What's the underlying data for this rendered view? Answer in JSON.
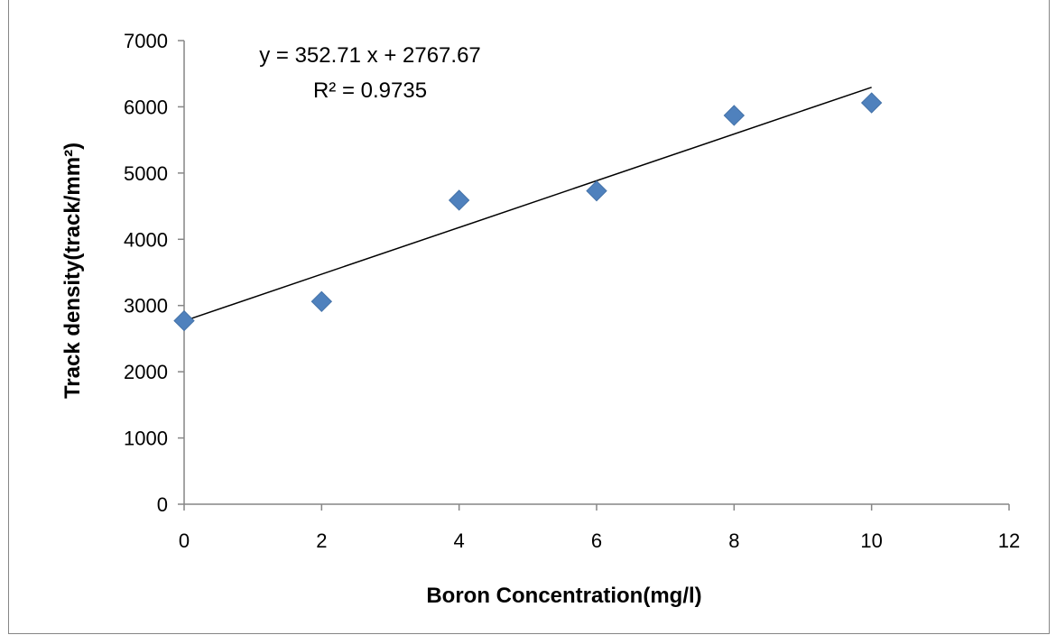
{
  "chart_data": {
    "type": "scatter",
    "xlabel": "Boron Concentration(mg/l)",
    "ylabel": "Track density(track/mm²)",
    "xlim": [
      0,
      12
    ],
    "ylim": [
      0,
      7000
    ],
    "x_ticks": [
      "0",
      "2",
      "4",
      "6",
      "8",
      "10",
      "12"
    ],
    "y_ticks": [
      "0",
      "1000",
      "2000",
      "3000",
      "4000",
      "5000",
      "6000",
      "7000"
    ],
    "grid": false,
    "legend": "none",
    "marker": "diamond",
    "marker_color": "#4f81bd",
    "trendline": {
      "type": "linear",
      "slope": 352.71,
      "intercept": 2767.67,
      "x_range": [
        0,
        10
      ],
      "color": "#000000",
      "equation_label": "y = 352.71 x + 2767.67",
      "r2_label": "R² = 0.9735"
    },
    "points": [
      {
        "x": 0,
        "y": 2770
      },
      {
        "x": 2,
        "y": 3060
      },
      {
        "x": 4,
        "y": 4590
      },
      {
        "x": 6,
        "y": 4730
      },
      {
        "x": 8,
        "y": 5870
      },
      {
        "x": 10,
        "y": 6060
      }
    ]
  }
}
